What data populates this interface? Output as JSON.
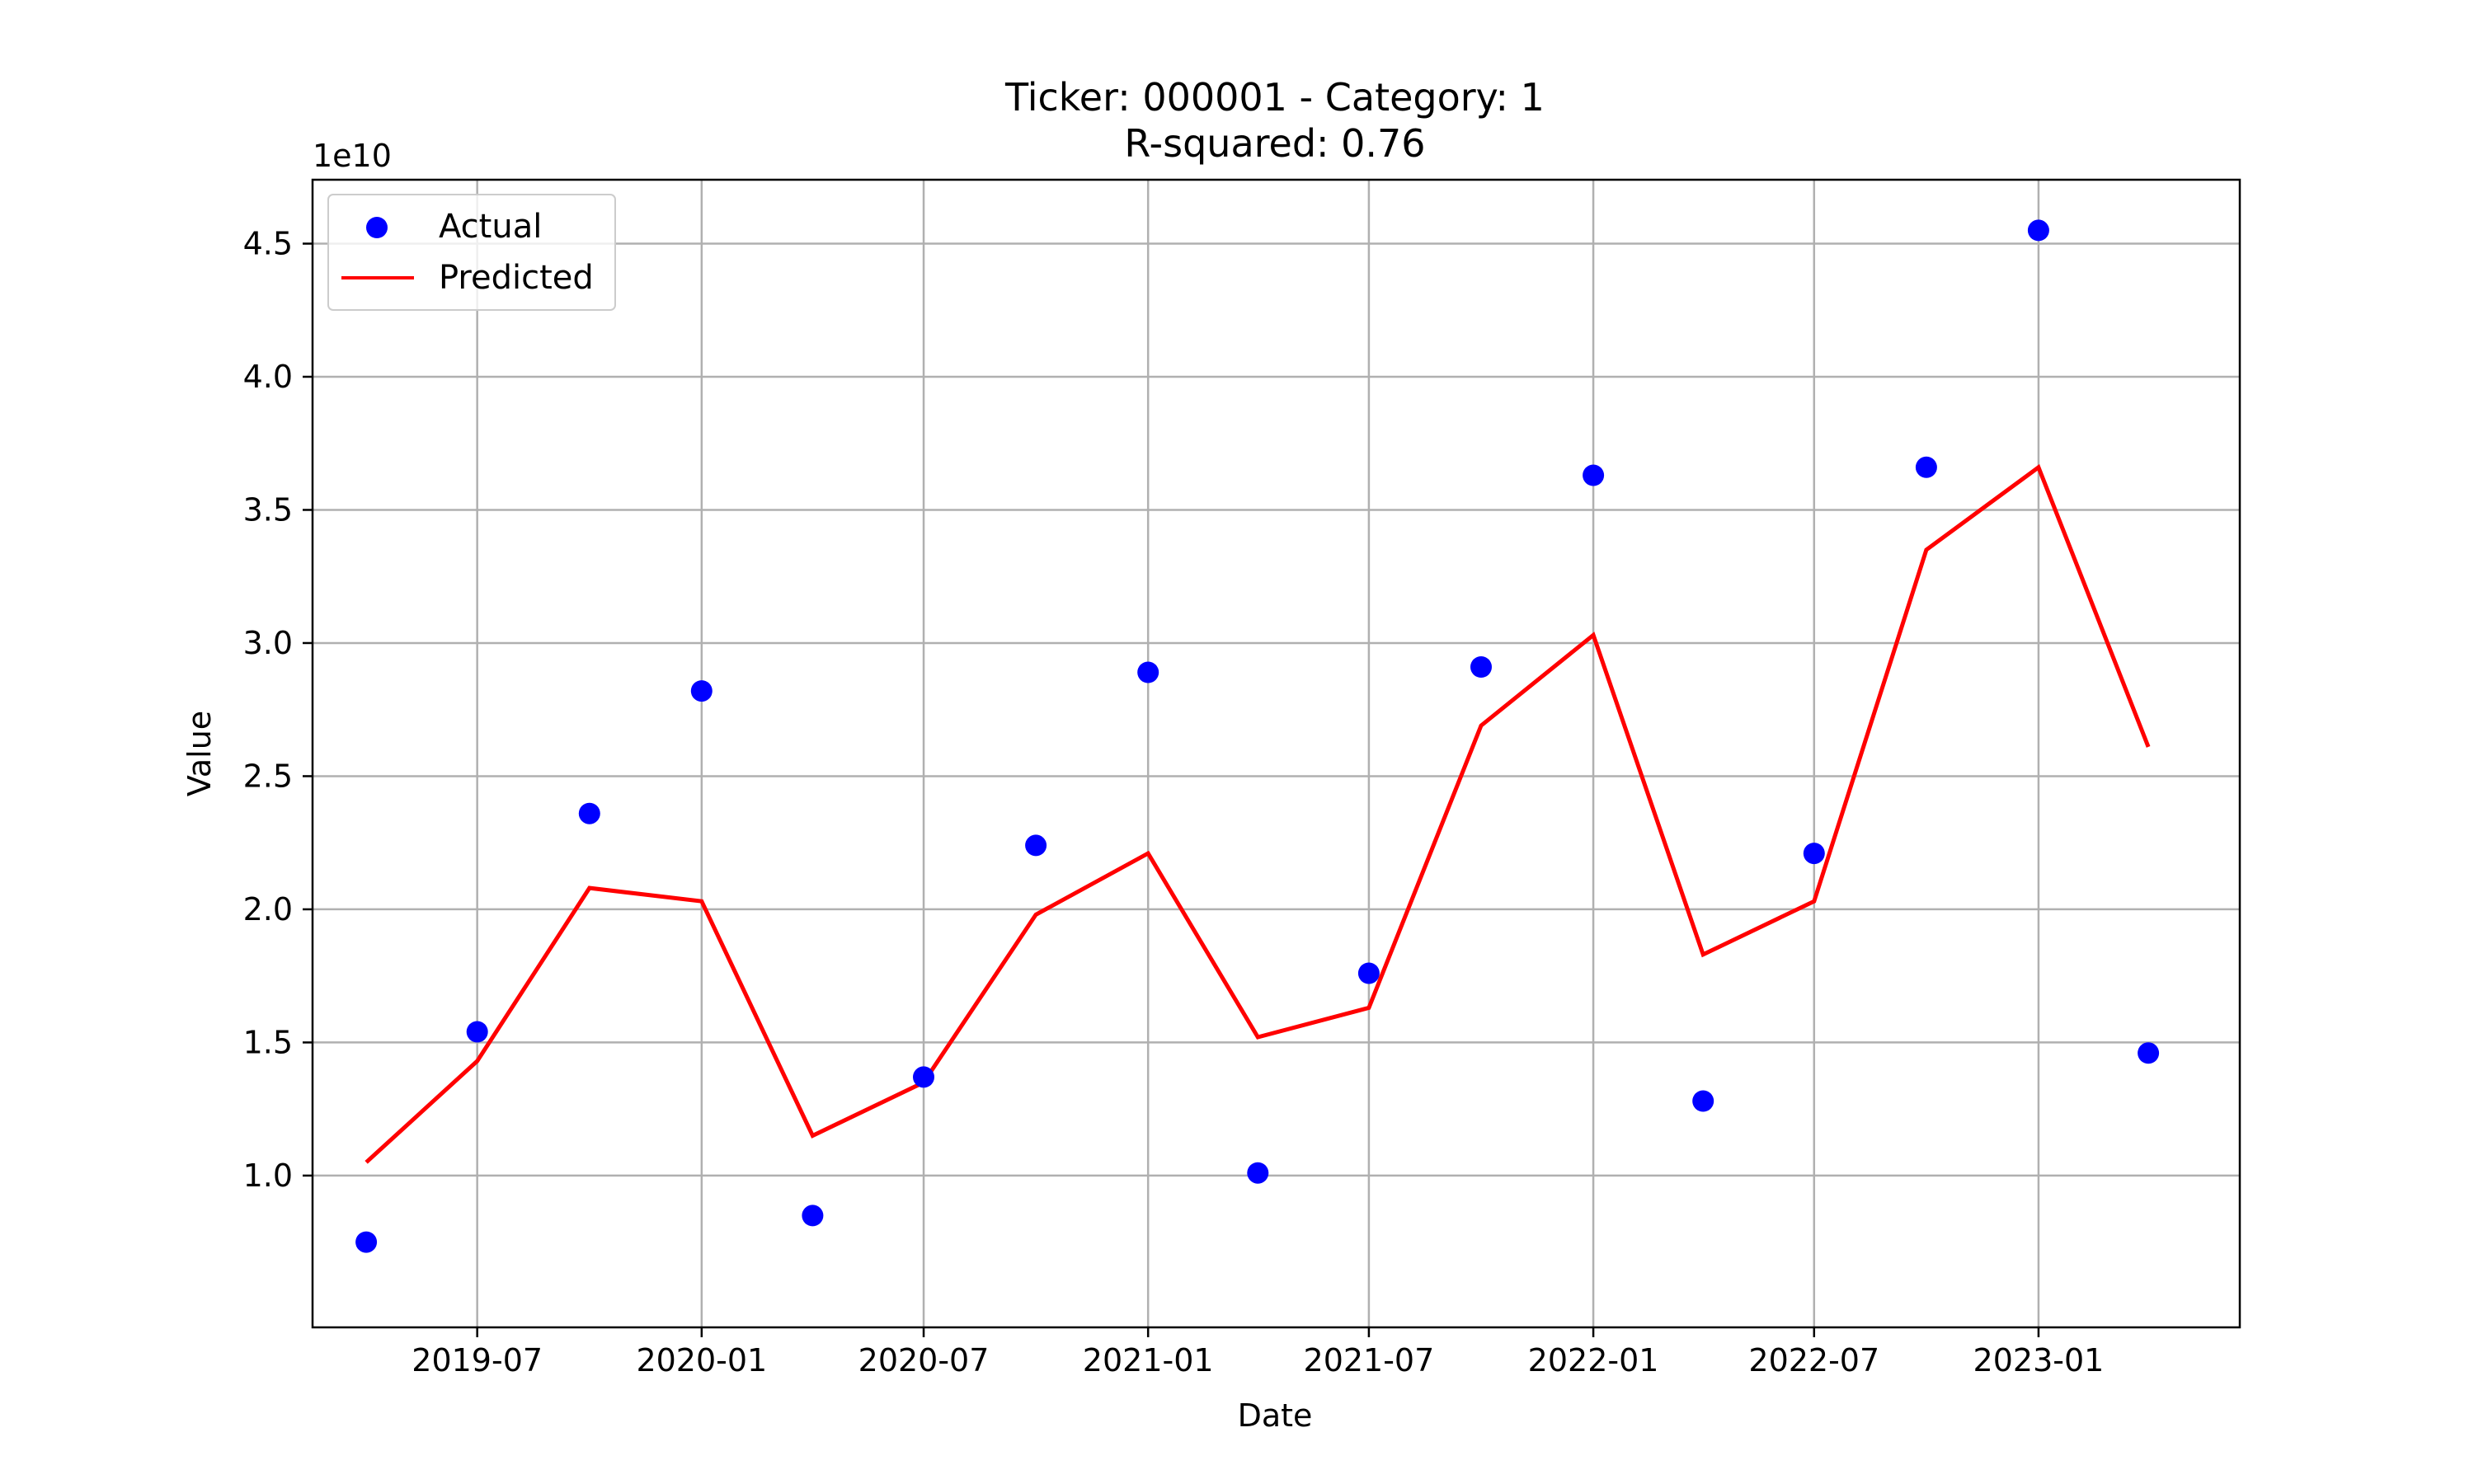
{
  "chart_data": {
    "type": "scatter",
    "title": "Ticker: 000001 - Category: 1",
    "subtitle": "R-squared: 0.76",
    "xlabel": "Date",
    "ylabel": "Value",
    "y_offset_label": "1e10",
    "x_tick_labels": [
      "2019-07",
      "2020-01",
      "2020-07",
      "2021-01",
      "2021-07",
      "2022-01",
      "2022-07",
      "2023-01"
    ],
    "x_tick_dates": [
      "2019-07-01",
      "2020-01-01",
      "2020-07-01",
      "2021-01-01",
      "2021-07-01",
      "2022-01-01",
      "2022-07-01",
      "2023-01-01"
    ],
    "y_ticks": [
      1.0,
      1.5,
      2.0,
      2.5,
      3.0,
      3.5,
      4.0,
      4.5
    ],
    "y_tick_labels": [
      "1.0",
      "1.5",
      "2.0",
      "2.5",
      "3.0",
      "3.5",
      "4.0",
      "4.5"
    ],
    "xlim": [
      "2019-02-16",
      "2023-06-15"
    ],
    "ylim": [
      0.43,
      4.74
    ],
    "grid": true,
    "legend_position": "top-left",
    "colors": {
      "actual": "#0000ff",
      "predicted": "#ff0000",
      "grid": "#b0b0b0"
    },
    "x": [
      "2019-04-01",
      "2019-07-01",
      "2019-10-01",
      "2020-01-01",
      "2020-04-01",
      "2020-07-01",
      "2020-10-01",
      "2021-01-01",
      "2021-04-01",
      "2021-07-01",
      "2021-10-01",
      "2022-01-01",
      "2022-04-01",
      "2022-07-01",
      "2022-10-01",
      "2023-01-01",
      "2023-04-01"
    ],
    "series": [
      {
        "name": "Actual",
        "kind": "scatter",
        "values": [
          0.75,
          1.54,
          2.36,
          2.82,
          0.85,
          1.37,
          2.24,
          2.89,
          1.01,
          1.76,
          2.91,
          3.63,
          1.28,
          2.21,
          3.66,
          4.55,
          1.46
        ]
      },
      {
        "name": "Predicted",
        "kind": "line",
        "values": [
          1.05,
          1.43,
          2.08,
          2.03,
          1.15,
          1.35,
          1.98,
          2.21,
          1.52,
          1.63,
          2.69,
          3.03,
          1.83,
          2.03,
          3.35,
          3.66,
          2.61
        ]
      }
    ]
  }
}
